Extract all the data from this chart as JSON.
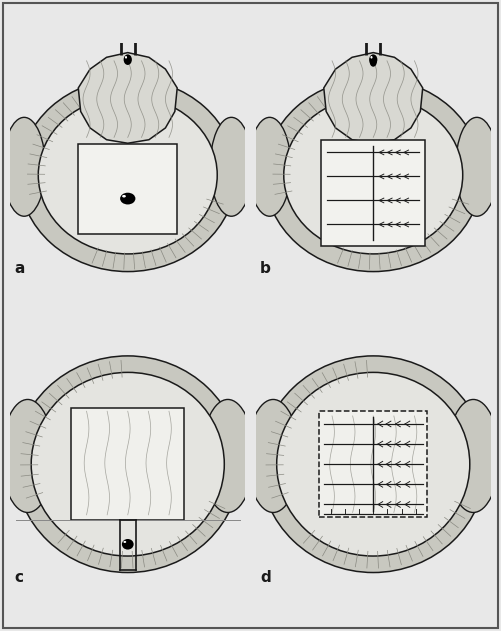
{
  "background_color": "#e8e8e8",
  "fig_width": 5.01,
  "fig_height": 6.31,
  "label_fontsize": 11,
  "labels": [
    "a",
    "b",
    "c",
    "d"
  ],
  "line_color": "#1a1a1a",
  "lw_main": 1.1,
  "lw_thin": 0.65,
  "tissue_color": "#c8c8c0",
  "flap_color": "#deded8",
  "inner_color": "#e4e4e0",
  "hatch_color": "#888880"
}
